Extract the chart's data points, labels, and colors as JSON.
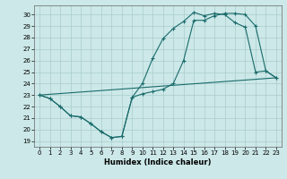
{
  "title": "",
  "xlabel": "Humidex (Indice chaleur)",
  "background_color": "#cce8e8",
  "grid_color": "#aacccc",
  "line_color": "#1a6b6b",
  "xlim": [
    -0.5,
    23.5
  ],
  "ylim": [
    18.5,
    30.8
  ],
  "xticks": [
    0,
    1,
    2,
    3,
    4,
    5,
    6,
    7,
    8,
    9,
    10,
    11,
    12,
    13,
    14,
    15,
    16,
    17,
    18,
    19,
    20,
    21,
    22,
    23
  ],
  "yticks": [
    19,
    20,
    21,
    22,
    23,
    24,
    25,
    26,
    27,
    28,
    29,
    30
  ],
  "line1_x": [
    0,
    1,
    2,
    3,
    4,
    5,
    6,
    7,
    8,
    9,
    10,
    11,
    12,
    13,
    14,
    15,
    16,
    17,
    18,
    19,
    20,
    21,
    22,
    23
  ],
  "line1_y": [
    23.0,
    22.7,
    22.0,
    21.2,
    21.1,
    20.5,
    19.8,
    19.3,
    19.4,
    22.8,
    23.1,
    23.3,
    23.5,
    24.0,
    26.0,
    29.5,
    29.5,
    29.9,
    30.1,
    30.1,
    30.0,
    29.0,
    25.1,
    24.5
  ],
  "line2_x": [
    0,
    1,
    2,
    3,
    4,
    5,
    6,
    7,
    8,
    9,
    10,
    11,
    12,
    13,
    14,
    15,
    16,
    17,
    18,
    19,
    20,
    21,
    22,
    23
  ],
  "line2_y": [
    23.0,
    22.7,
    22.0,
    21.2,
    21.1,
    20.5,
    19.8,
    19.3,
    19.4,
    22.8,
    24.0,
    26.2,
    27.9,
    28.8,
    29.4,
    30.2,
    29.9,
    30.1,
    30.0,
    29.3,
    28.9,
    25.0,
    25.1,
    24.5
  ],
  "line3_x": [
    0,
    23
  ],
  "line3_y": [
    23.0,
    24.5
  ]
}
